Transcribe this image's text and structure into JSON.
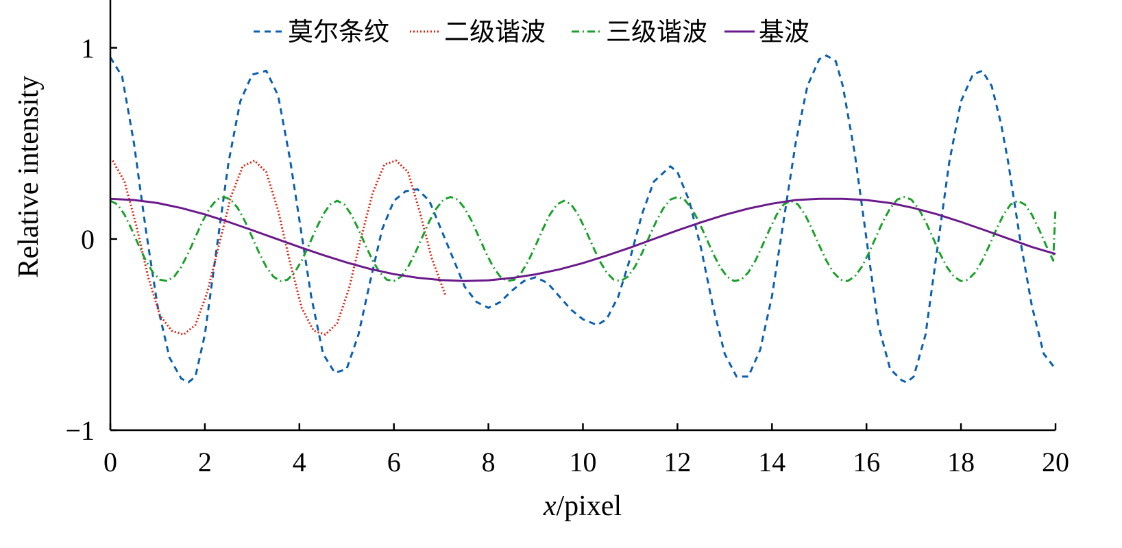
{
  "chart_data": {
    "type": "line",
    "xlabel_italic": "x",
    "xlabel_rest": "/pixel",
    "ylabel": "Relative intensity",
    "xlim": [
      0,
      20
    ],
    "ylim": [
      -1,
      1.25
    ],
    "xticks": [
      0,
      2,
      4,
      6,
      8,
      10,
      12,
      14,
      16,
      18,
      20
    ],
    "xtick_labels": [
      "0",
      "2",
      "4",
      "6",
      "8",
      "10",
      "12",
      "14",
      "16",
      "18",
      "20"
    ],
    "yticks": [
      -1,
      0,
      1
    ],
    "ytick_labels": [
      "−1",
      "0",
      "1"
    ],
    "grid": false,
    "legend_position": "top",
    "series": [
      {
        "name": "莫尔条纹",
        "color": "#0a5fb0",
        "style": "dashed",
        "x": [
          0,
          0.25,
          0.5,
          0.75,
          1,
          1.25,
          1.5,
          1.65,
          1.8,
          2,
          2.25,
          2.5,
          2.75,
          3,
          3.3,
          3.55,
          3.8,
          4,
          4.25,
          4.5,
          4.75,
          5,
          5.25,
          5.5,
          5.75,
          6,
          6.25,
          6.5,
          6.75,
          7,
          7.25,
          7.5,
          7.75,
          8,
          8.25,
          8.5,
          8.75,
          9,
          9.25,
          9.5,
          9.75,
          10,
          10.3,
          10.5,
          10.75,
          11,
          11.25,
          11.5,
          11.85,
          12,
          12.25,
          12.5,
          12.75,
          13,
          13.25,
          13.5,
          13.75,
          14,
          14.25,
          14.5,
          14.75,
          15,
          15.15,
          15.35,
          15.5,
          15.75,
          16,
          16.25,
          16.5,
          16.75,
          16.85,
          17,
          17.25,
          17.5,
          17.75,
          18,
          18.25,
          18.45,
          18.65,
          18.85,
          19,
          19.25,
          19.5,
          19.75,
          20
        ],
        "y": [
          0.95,
          0.85,
          0.5,
          0.05,
          -0.35,
          -0.62,
          -0.73,
          -0.75,
          -0.72,
          -0.5,
          -0.05,
          0.4,
          0.72,
          0.86,
          0.88,
          0.75,
          0.42,
          0.1,
          -0.3,
          -0.6,
          -0.7,
          -0.68,
          -0.5,
          -0.22,
          0.05,
          0.2,
          0.25,
          0.26,
          0.2,
          0.05,
          -0.1,
          -0.25,
          -0.33,
          -0.36,
          -0.33,
          -0.27,
          -0.22,
          -0.2,
          -0.23,
          -0.3,
          -0.37,
          -0.42,
          -0.45,
          -0.42,
          -0.3,
          -0.1,
          0.13,
          0.3,
          0.38,
          0.35,
          0.2,
          -0.05,
          -0.35,
          -0.6,
          -0.72,
          -0.72,
          -0.58,
          -0.3,
          0.1,
          0.5,
          0.8,
          0.94,
          0.96,
          0.93,
          0.8,
          0.45,
          0.0,
          -0.45,
          -0.68,
          -0.74,
          -0.75,
          -0.72,
          -0.5,
          -0.05,
          0.4,
          0.72,
          0.86,
          0.88,
          0.8,
          0.6,
          0.4,
          0.0,
          -0.35,
          -0.6,
          -0.68
        ]
      },
      {
        "name": "二级谐波",
        "color": "#e02010",
        "style": "dotted",
        "x": [
          0.05,
          0.3,
          0.55,
          0.8,
          1.05,
          1.3,
          1.55,
          1.8,
          2.05,
          2.3,
          2.55,
          2.8,
          3.05,
          3.3,
          3.55,
          3.8,
          4.05,
          4.3,
          4.55,
          4.8,
          5.05,
          5.3,
          5.55,
          5.8,
          6.05,
          6.3,
          6.55,
          6.8,
          7.1
        ],
        "y": [
          0.41,
          0.3,
          0.07,
          -0.2,
          -0.4,
          -0.48,
          -0.5,
          -0.45,
          -0.28,
          -0.03,
          0.22,
          0.38,
          0.41,
          0.35,
          0.15,
          -0.12,
          -0.36,
          -0.48,
          -0.5,
          -0.44,
          -0.26,
          0.0,
          0.24,
          0.39,
          0.41,
          0.35,
          0.14,
          -0.1,
          -0.3
        ]
      },
      {
        "name": "三级谐波",
        "color": "#1aa02a",
        "style": "dashdot",
        "x": [
          0,
          0.15,
          0.3,
          0.45,
          0.6,
          0.75,
          0.9,
          1.05,
          1.2,
          1.35,
          1.5,
          1.65,
          1.8,
          1.95,
          2.1,
          2.25,
          2.4,
          2.55,
          2.7,
          2.85,
          3.0,
          3.15,
          3.3,
          3.45,
          3.6,
          3.75,
          3.9,
          4.05,
          4.2,
          4.35,
          4.5,
          4.65,
          4.8,
          4.95,
          5.1,
          5.25,
          5.4,
          5.55,
          5.7,
          5.85,
          6.0,
          6.15,
          6.3,
          6.45,
          6.6,
          6.75,
          6.9,
          7.05,
          7.2,
          7.35,
          7.5,
          7.65,
          7.8,
          7.95,
          8.1,
          8.25,
          8.4,
          8.55,
          8.7,
          8.85,
          9.0,
          9.15,
          9.3,
          9.45,
          9.6,
          9.75,
          9.9,
          10.05,
          10.2,
          10.35,
          10.5,
          10.65,
          10.8,
          10.95,
          11.1,
          11.25,
          11.4,
          11.55,
          11.7,
          11.85,
          12.0,
          12.15,
          12.3,
          12.45,
          12.6,
          12.75,
          12.9,
          13.05,
          13.2,
          13.35,
          13.5,
          13.65,
          13.8,
          13.95,
          14.1,
          14.25,
          14.4,
          14.55,
          14.7,
          14.85,
          15.0,
          15.15,
          15.3,
          15.45,
          15.6,
          15.75,
          15.9,
          16.05,
          16.2,
          16.35,
          16.5,
          16.65,
          16.8,
          16.95,
          17.1,
          17.25,
          17.4,
          17.55,
          17.7,
          17.85,
          18.0,
          18.15,
          18.3,
          18.45,
          18.6,
          18.75,
          18.9,
          19.05,
          19.2,
          19.35,
          19.5,
          19.65,
          19.8,
          19.95,
          20
        ],
        "y": [
          0.2,
          0.181,
          0.127,
          0.051,
          -0.033,
          -0.113,
          -0.175,
          -0.213,
          -0.22,
          -0.197,
          -0.146,
          -0.074,
          0.01,
          0.092,
          0.16,
          0.206,
          0.22,
          0.206,
          0.16,
          0.092,
          0.01,
          -0.074,
          -0.146,
          -0.197,
          -0.22,
          -0.213,
          -0.175,
          -0.113,
          -0.033,
          0.051,
          0.127,
          0.181,
          0.2,
          0.181,
          0.127,
          0.051,
          -0.033,
          -0.113,
          -0.175,
          -0.213,
          -0.22,
          -0.197,
          -0.146,
          -0.074,
          0.01,
          0.092,
          0.16,
          0.206,
          0.22,
          0.206,
          0.16,
          0.092,
          0.01,
          -0.074,
          -0.146,
          -0.197,
          -0.22,
          -0.213,
          -0.175,
          -0.113,
          -0.033,
          0.051,
          0.127,
          0.181,
          0.2,
          0.181,
          0.127,
          0.051,
          -0.033,
          -0.113,
          -0.175,
          -0.213,
          -0.22,
          -0.197,
          -0.146,
          -0.074,
          0.01,
          0.092,
          0.16,
          0.206,
          0.22,
          0.206,
          0.16,
          0.092,
          0.01,
          -0.074,
          -0.146,
          -0.197,
          -0.22,
          -0.213,
          -0.175,
          -0.113,
          -0.033,
          0.051,
          0.127,
          0.181,
          0.2,
          0.181,
          0.127,
          0.051,
          -0.033,
          -0.113,
          -0.175,
          -0.213,
          -0.22,
          -0.197,
          -0.146,
          -0.074,
          0.01,
          0.092,
          0.16,
          0.206,
          0.22,
          0.206,
          0.16,
          0.092,
          0.01,
          -0.074,
          -0.146,
          -0.197,
          -0.22,
          -0.213,
          -0.175,
          -0.113,
          -0.033,
          0.051,
          0.127,
          0.181,
          0.2,
          0.181,
          0.127,
          0.051,
          -0.033,
          -0.113,
          0.16
        ]
      },
      {
        "name": "基波",
        "color": "#6a1a8a",
        "style": "solid",
        "x": [
          0,
          0.5,
          1,
          1.5,
          2,
          2.5,
          3,
          3.5,
          4,
          4.5,
          5,
          5.5,
          6,
          6.5,
          7,
          7.5,
          8,
          8.5,
          9,
          9.5,
          10,
          10.5,
          11,
          11.5,
          12,
          12.5,
          13,
          13.5,
          14,
          14.5,
          15,
          15.5,
          16,
          16.5,
          17,
          17.5,
          18,
          18.5,
          19,
          19.5,
          20
        ],
        "y": [
          0.21,
          0.204,
          0.188,
          0.162,
          0.129,
          0.089,
          0.046,
          0.002,
          -0.042,
          -0.084,
          -0.123,
          -0.157,
          -0.184,
          -0.203,
          -0.215,
          -0.22,
          -0.216,
          -0.204,
          -0.185,
          -0.159,
          -0.126,
          -0.087,
          -0.045,
          0.0,
          0.045,
          0.087,
          0.126,
          0.159,
          0.185,
          0.204,
          0.21,
          0.21,
          0.204,
          0.188,
          0.162,
          0.129,
          0.089,
          0.046,
          0.002,
          -0.042,
          -0.078
        ]
      }
    ]
  }
}
